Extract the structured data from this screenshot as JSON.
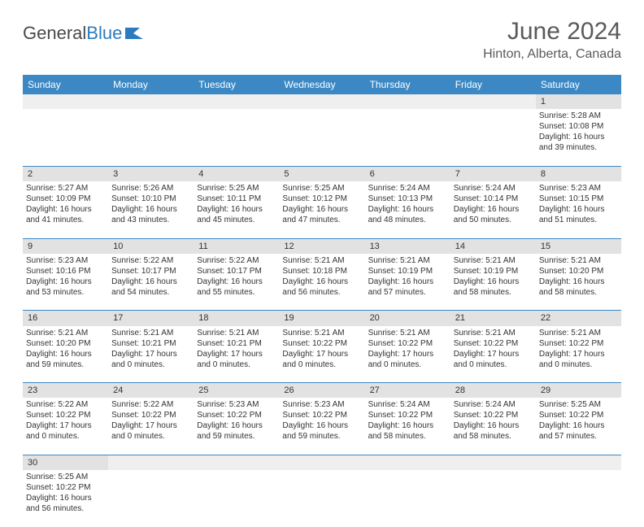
{
  "brand": {
    "name_part1": "General",
    "name_part2": "Blue"
  },
  "title": "June 2024",
  "location": "Hinton, Alberta, Canada",
  "colors": {
    "header_bg": "#3b88c4",
    "header_text": "#ffffff",
    "daynum_bg": "#e2e2e2",
    "cell_border": "#3b88c4",
    "logo_blue": "#2b7bbf",
    "text": "#333333"
  },
  "day_headers": [
    "Sunday",
    "Monday",
    "Tuesday",
    "Wednesday",
    "Thursday",
    "Friday",
    "Saturday"
  ],
  "weeks": [
    {
      "nums": [
        "",
        "",
        "",
        "",
        "",
        "",
        "1"
      ],
      "cells": [
        null,
        null,
        null,
        null,
        null,
        null,
        {
          "sunrise": "Sunrise: 5:28 AM",
          "sunset": "Sunset: 10:08 PM",
          "day1": "Daylight: 16 hours",
          "day2": "and 39 minutes."
        }
      ]
    },
    {
      "nums": [
        "2",
        "3",
        "4",
        "5",
        "6",
        "7",
        "8"
      ],
      "cells": [
        {
          "sunrise": "Sunrise: 5:27 AM",
          "sunset": "Sunset: 10:09 PM",
          "day1": "Daylight: 16 hours",
          "day2": "and 41 minutes."
        },
        {
          "sunrise": "Sunrise: 5:26 AM",
          "sunset": "Sunset: 10:10 PM",
          "day1": "Daylight: 16 hours",
          "day2": "and 43 minutes."
        },
        {
          "sunrise": "Sunrise: 5:25 AM",
          "sunset": "Sunset: 10:11 PM",
          "day1": "Daylight: 16 hours",
          "day2": "and 45 minutes."
        },
        {
          "sunrise": "Sunrise: 5:25 AM",
          "sunset": "Sunset: 10:12 PM",
          "day1": "Daylight: 16 hours",
          "day2": "and 47 minutes."
        },
        {
          "sunrise": "Sunrise: 5:24 AM",
          "sunset": "Sunset: 10:13 PM",
          "day1": "Daylight: 16 hours",
          "day2": "and 48 minutes."
        },
        {
          "sunrise": "Sunrise: 5:24 AM",
          "sunset": "Sunset: 10:14 PM",
          "day1": "Daylight: 16 hours",
          "day2": "and 50 minutes."
        },
        {
          "sunrise": "Sunrise: 5:23 AM",
          "sunset": "Sunset: 10:15 PM",
          "day1": "Daylight: 16 hours",
          "day2": "and 51 minutes."
        }
      ]
    },
    {
      "nums": [
        "9",
        "10",
        "11",
        "12",
        "13",
        "14",
        "15"
      ],
      "cells": [
        {
          "sunrise": "Sunrise: 5:23 AM",
          "sunset": "Sunset: 10:16 PM",
          "day1": "Daylight: 16 hours",
          "day2": "and 53 minutes."
        },
        {
          "sunrise": "Sunrise: 5:22 AM",
          "sunset": "Sunset: 10:17 PM",
          "day1": "Daylight: 16 hours",
          "day2": "and 54 minutes."
        },
        {
          "sunrise": "Sunrise: 5:22 AM",
          "sunset": "Sunset: 10:17 PM",
          "day1": "Daylight: 16 hours",
          "day2": "and 55 minutes."
        },
        {
          "sunrise": "Sunrise: 5:21 AM",
          "sunset": "Sunset: 10:18 PM",
          "day1": "Daylight: 16 hours",
          "day2": "and 56 minutes."
        },
        {
          "sunrise": "Sunrise: 5:21 AM",
          "sunset": "Sunset: 10:19 PM",
          "day1": "Daylight: 16 hours",
          "day2": "and 57 minutes."
        },
        {
          "sunrise": "Sunrise: 5:21 AM",
          "sunset": "Sunset: 10:19 PM",
          "day1": "Daylight: 16 hours",
          "day2": "and 58 minutes."
        },
        {
          "sunrise": "Sunrise: 5:21 AM",
          "sunset": "Sunset: 10:20 PM",
          "day1": "Daylight: 16 hours",
          "day2": "and 58 minutes."
        }
      ]
    },
    {
      "nums": [
        "16",
        "17",
        "18",
        "19",
        "20",
        "21",
        "22"
      ],
      "cells": [
        {
          "sunrise": "Sunrise: 5:21 AM",
          "sunset": "Sunset: 10:20 PM",
          "day1": "Daylight: 16 hours",
          "day2": "and 59 minutes."
        },
        {
          "sunrise": "Sunrise: 5:21 AM",
          "sunset": "Sunset: 10:21 PM",
          "day1": "Daylight: 17 hours",
          "day2": "and 0 minutes."
        },
        {
          "sunrise": "Sunrise: 5:21 AM",
          "sunset": "Sunset: 10:21 PM",
          "day1": "Daylight: 17 hours",
          "day2": "and 0 minutes."
        },
        {
          "sunrise": "Sunrise: 5:21 AM",
          "sunset": "Sunset: 10:22 PM",
          "day1": "Daylight: 17 hours",
          "day2": "and 0 minutes."
        },
        {
          "sunrise": "Sunrise: 5:21 AM",
          "sunset": "Sunset: 10:22 PM",
          "day1": "Daylight: 17 hours",
          "day2": "and 0 minutes."
        },
        {
          "sunrise": "Sunrise: 5:21 AM",
          "sunset": "Sunset: 10:22 PM",
          "day1": "Daylight: 17 hours",
          "day2": "and 0 minutes."
        },
        {
          "sunrise": "Sunrise: 5:21 AM",
          "sunset": "Sunset: 10:22 PM",
          "day1": "Daylight: 17 hours",
          "day2": "and 0 minutes."
        }
      ]
    },
    {
      "nums": [
        "23",
        "24",
        "25",
        "26",
        "27",
        "28",
        "29"
      ],
      "cells": [
        {
          "sunrise": "Sunrise: 5:22 AM",
          "sunset": "Sunset: 10:22 PM",
          "day1": "Daylight: 17 hours",
          "day2": "and 0 minutes."
        },
        {
          "sunrise": "Sunrise: 5:22 AM",
          "sunset": "Sunset: 10:22 PM",
          "day1": "Daylight: 17 hours",
          "day2": "and 0 minutes."
        },
        {
          "sunrise": "Sunrise: 5:23 AM",
          "sunset": "Sunset: 10:22 PM",
          "day1": "Daylight: 16 hours",
          "day2": "and 59 minutes."
        },
        {
          "sunrise": "Sunrise: 5:23 AM",
          "sunset": "Sunset: 10:22 PM",
          "day1": "Daylight: 16 hours",
          "day2": "and 59 minutes."
        },
        {
          "sunrise": "Sunrise: 5:24 AM",
          "sunset": "Sunset: 10:22 PM",
          "day1": "Daylight: 16 hours",
          "day2": "and 58 minutes."
        },
        {
          "sunrise": "Sunrise: 5:24 AM",
          "sunset": "Sunset: 10:22 PM",
          "day1": "Daylight: 16 hours",
          "day2": "and 58 minutes."
        },
        {
          "sunrise": "Sunrise: 5:25 AM",
          "sunset": "Sunset: 10:22 PM",
          "day1": "Daylight: 16 hours",
          "day2": "and 57 minutes."
        }
      ]
    },
    {
      "nums": [
        "30",
        "",
        "",
        "",
        "",
        "",
        ""
      ],
      "cells": [
        {
          "sunrise": "Sunrise: 5:25 AM",
          "sunset": "Sunset: 10:22 PM",
          "day1": "Daylight: 16 hours",
          "day2": "and 56 minutes."
        },
        null,
        null,
        null,
        null,
        null,
        null
      ]
    }
  ]
}
